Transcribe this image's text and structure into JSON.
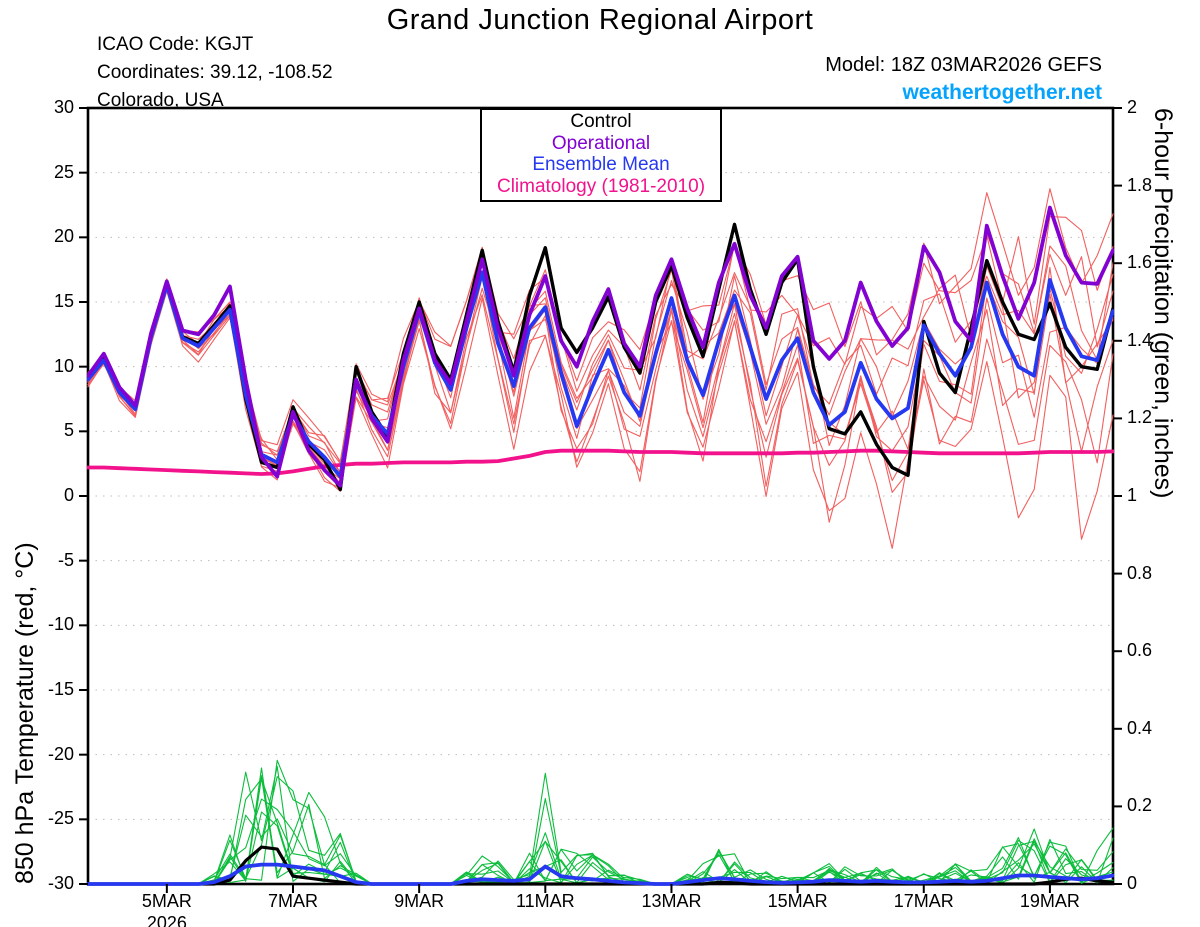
{
  "header": {
    "title": "Grand Junction Regional Airport",
    "icao_line": "ICAO Code: KGJT",
    "coords_line": "Coordinates: 39.12, -108.52",
    "region_line": "Colorado, USA",
    "model_line": "Model: 18Z 03MAR2026 GEFS",
    "site": "weathertogether.net",
    "site_color": "#06a3fc"
  },
  "legend": {
    "items": [
      {
        "label": "Control",
        "color": "#000000"
      },
      {
        "label": "Operational",
        "color": "#8202d2"
      },
      {
        "label": "Ensemble Mean",
        "color": "#2638f0"
      },
      {
        "label": "Climatology (1981-2010)",
        "color": "#f2138c"
      }
    ]
  },
  "chart_data": {
    "type": "line",
    "title": "Grand Junction Regional Airport",
    "x_start_day": 3.75,
    "x_end_day": 20.0,
    "x_step_days": 0.25,
    "x_ticks": [
      {
        "day": 5,
        "label": "5MAR",
        "sublabel": "2026"
      },
      {
        "day": 7,
        "label": "7MAR"
      },
      {
        "day": 9,
        "label": "9MAR"
      },
      {
        "day": 11,
        "label": "11MAR"
      },
      {
        "day": 13,
        "label": "13MAR"
      },
      {
        "day": 15,
        "label": "15MAR"
      },
      {
        "day": 17,
        "label": "17MAR"
      },
      {
        "day": 19,
        "label": "19MAR"
      }
    ],
    "left_axis": {
      "label": "850 hPa Temperature (red, °C)",
      "min": -30,
      "max": 30,
      "tick_step": 5
    },
    "right_axis": {
      "label": "6-hour Precipitation (green, inches)",
      "min": 0,
      "max": 2,
      "tick_step": 0.2
    },
    "grid": {
      "color": "#bdbdbd",
      "dash": "1.5 6"
    },
    "series": {
      "control_temp": {
        "name": "Control",
        "color": "#000000",
        "width": 3.4,
        "values": [
          9.0,
          10.8,
          8.2,
          6.8,
          12.5,
          16.4,
          12.3,
          11.8,
          13.2,
          14.7,
          7.5,
          2.6,
          2.2,
          6.9,
          4.0,
          2.8,
          0.5,
          10.0,
          6.5,
          4.6,
          11.0,
          15.0,
          11.0,
          9.0,
          14.0,
          19.0,
          13.5,
          9.6,
          15.5,
          19.2,
          13.0,
          11.1,
          13.0,
          15.4,
          11.5,
          9.5,
          15.0,
          17.8,
          13.8,
          10.8,
          16.0,
          21.0,
          16.0,
          12.5,
          16.5,
          18.3,
          10.0,
          5.2,
          4.8,
          6.5,
          4.0,
          2.2,
          1.6,
          13.5,
          9.5,
          8.0,
          13.0,
          18.2,
          15.0,
          12.5,
          12.1,
          14.9,
          11.5,
          10.0,
          9.8,
          14.5
        ]
      },
      "operational_temp": {
        "name": "Operational",
        "color": "#8202d2",
        "width": 3.8,
        "values": [
          9.3,
          11.0,
          8.4,
          7.0,
          12.6,
          16.6,
          12.8,
          12.5,
          14.0,
          16.2,
          9.0,
          3.0,
          1.5,
          6.5,
          3.5,
          2.0,
          0.8,
          9.0,
          6.0,
          4.2,
          10.5,
          14.5,
          10.5,
          8.7,
          13.5,
          18.3,
          13.0,
          9.3,
          14.0,
          17.0,
          12.0,
          10.0,
          13.5,
          16.0,
          11.8,
          10.0,
          15.5,
          18.3,
          14.5,
          11.5,
          16.5,
          19.5,
          15.5,
          13.0,
          17.0,
          18.5,
          12.0,
          10.6,
          12.0,
          16.5,
          13.5,
          11.6,
          13.0,
          19.3,
          17.3,
          13.5,
          12.0,
          20.9,
          17.0,
          13.7,
          16.5,
          22.3,
          18.6,
          16.5,
          16.4,
          19.0
        ]
      },
      "mean_temp": {
        "name": "Ensemble Mean",
        "color": "#2638f0",
        "width": 3.8,
        "values": [
          9.0,
          10.5,
          8.0,
          6.7,
          12.3,
          16.3,
          12.2,
          11.6,
          13.0,
          14.4,
          7.8,
          3.2,
          2.6,
          6.3,
          4.2,
          3.0,
          1.5,
          8.8,
          6.2,
          4.8,
          10.0,
          14.3,
          10.3,
          8.2,
          13.0,
          17.3,
          11.8,
          8.5,
          13.0,
          14.6,
          9.5,
          5.4,
          8.5,
          11.3,
          8.0,
          6.2,
          11.0,
          15.3,
          10.5,
          7.8,
          12.0,
          15.5,
          11.5,
          7.5,
          10.5,
          12.2,
          8.0,
          5.5,
          6.5,
          10.3,
          7.5,
          6.0,
          6.8,
          13.2,
          11.0,
          9.3,
          11.5,
          16.5,
          12.5,
          10.0,
          9.3,
          16.7,
          13.0,
          10.8,
          10.5,
          14.3
        ]
      },
      "climatology_temp": {
        "name": "Climatology (1981-2010)",
        "color": "#f2138c",
        "width": 3.8,
        "values": [
          2.2,
          2.2,
          2.15,
          2.1,
          2.05,
          2.0,
          1.95,
          1.9,
          1.85,
          1.8,
          1.75,
          1.7,
          1.75,
          1.9,
          2.1,
          2.3,
          2.4,
          2.5,
          2.5,
          2.55,
          2.6,
          2.6,
          2.6,
          2.6,
          2.65,
          2.65,
          2.7,
          2.9,
          3.1,
          3.4,
          3.5,
          3.5,
          3.5,
          3.5,
          3.45,
          3.4,
          3.4,
          3.4,
          3.35,
          3.3,
          3.3,
          3.3,
          3.3,
          3.3,
          3.3,
          3.35,
          3.35,
          3.4,
          3.45,
          3.5,
          3.5,
          3.45,
          3.4,
          3.35,
          3.3,
          3.3,
          3.3,
          3.3,
          3.3,
          3.3,
          3.35,
          3.4,
          3.4,
          3.4,
          3.4,
          3.45
        ]
      },
      "control_precip": {
        "name": "Control precipitation",
        "color": "#000000",
        "width": 3.2,
        "values": [
          0,
          0,
          0,
          0,
          0,
          0,
          0,
          0,
          0,
          0.01,
          0.06,
          0.095,
          0.09,
          0.02,
          0.015,
          0.01,
          0.005,
          0,
          0,
          0,
          0,
          0,
          0,
          0,
          0,
          0,
          0,
          0,
          0,
          0,
          0,
          0,
          0,
          0,
          0,
          0,
          0,
          0,
          0,
          0,
          0.004,
          0.003,
          0,
          0,
          0,
          0,
          0,
          0,
          0,
          0,
          0,
          0,
          0,
          0,
          0,
          0,
          0,
          0,
          0,
          0,
          0,
          0.005,
          0.012,
          0.015,
          0.008,
          0.004
        ]
      },
      "mean_precip": {
        "name": "Ensemble mean precipitation",
        "color": "#2638f0",
        "width": 3.8,
        "values": [
          0,
          0,
          0,
          0,
          0,
          0,
          0,
          0,
          0.005,
          0.02,
          0.045,
          0.05,
          0.05,
          0.045,
          0.04,
          0.035,
          0.02,
          0.005,
          0,
          0,
          0,
          0,
          0,
          0,
          0.008,
          0.012,
          0.01,
          0.008,
          0.012,
          0.045,
          0.02,
          0.015,
          0.012,
          0.008,
          0.004,
          0.002,
          0,
          0,
          0.005,
          0.01,
          0.015,
          0.012,
          0.008,
          0.005,
          0.003,
          0.004,
          0.006,
          0.01,
          0.008,
          0.006,
          0.008,
          0.006,
          0.004,
          0.004,
          0.006,
          0.008,
          0.006,
          0.008,
          0.015,
          0.022,
          0.022,
          0.018,
          0.015,
          0.012,
          0.015,
          0.022
        ]
      }
    },
    "ensemble": {
      "temp_color": "#f25f5f",
      "precip_color": "#0cbd3c",
      "member_width": 1.1,
      "member_count": 10,
      "offsets": [
        -1.0,
        -0.75,
        -0.55,
        -0.35,
        -0.15,
        0.15,
        0.35,
        0.55,
        0.8,
        1.0
      ],
      "spread_start": 0.35,
      "spread_growth": 6.5,
      "spread_exponent": 1.4,
      "diurnal_boost": [
        1.1,
        0.85,
        1.15,
        1.5
      ],
      "wiggle": 0.9,
      "precip_multiplier_min": 0.15,
      "precip_multiplier_range": 6.5
    }
  }
}
